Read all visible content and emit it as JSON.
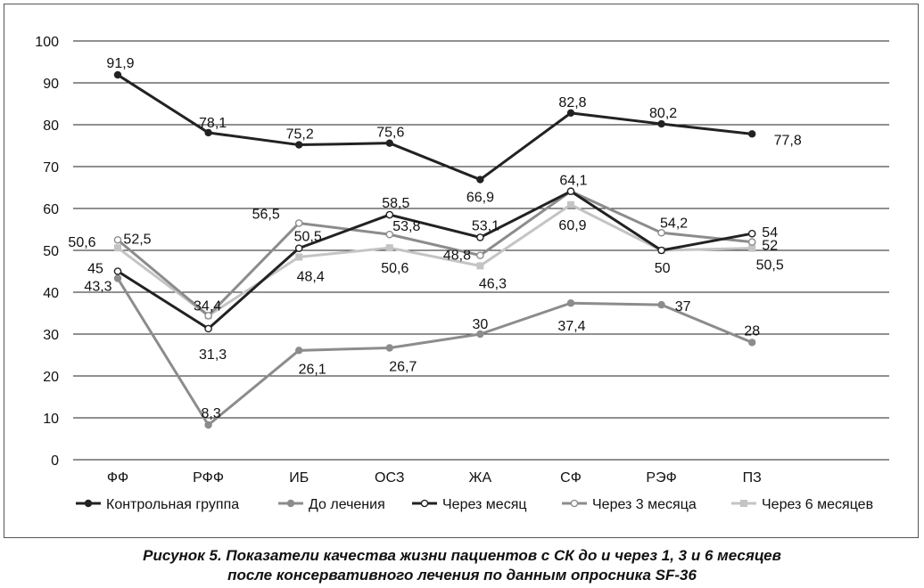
{
  "chart_data": {
    "type": "line",
    "title": "",
    "xlabel": "",
    "ylabel": "",
    "ylim": [
      0,
      100
    ],
    "yticks": [
      0,
      10,
      20,
      30,
      40,
      50,
      60,
      70,
      80,
      90,
      100
    ],
    "grid": true,
    "legend_position": "bottom",
    "categories": [
      "ФФ",
      "РФФ",
      "ИБ",
      "ОСЗ",
      "ЖА",
      "СФ",
      "РЭФ",
      "ПЗ"
    ],
    "series": [
      {
        "name": "Контрольная группа",
        "values": [
          91.9,
          78.1,
          75.2,
          75.6,
          66.9,
          82.8,
          80.2,
          77.8
        ],
        "labels": [
          "91,9",
          "78,1",
          "75,2",
          "75,6",
          "66,9",
          "82,8",
          "80,2",
          "77,8"
        ],
        "color": "#222222",
        "marker": "filled-circle"
      },
      {
        "name": "До лечения",
        "values": [
          43.3,
          8.3,
          26.1,
          26.7,
          30,
          37.4,
          37,
          28
        ],
        "labels": [
          "43,3",
          "8,3",
          "26,1",
          "26,7",
          "30",
          "37,4",
          "37",
          "28"
        ],
        "color": "#8c8c8c",
        "marker": "filled-circle"
      },
      {
        "name": "Через месяц",
        "values": [
          45,
          31.3,
          50.5,
          58.5,
          53.1,
          64.1,
          50,
          54
        ],
        "labels": [
          "45",
          "31,3",
          "50,5",
          "58,5",
          "53,1",
          "64,1",
          "50",
          "54"
        ],
        "color": "#222222",
        "marker": "open-circle"
      },
      {
        "name": "Через 3 месяца",
        "values": [
          52.5,
          34.4,
          56.5,
          53.8,
          48.8,
          64.1,
          54.2,
          52
        ],
        "labels": [
          "52,5",
          "34,4",
          "56,5",
          "53,8",
          "48,8",
          "",
          "54,2",
          "52"
        ],
        "color": "#8c8c8c",
        "marker": "open-circle"
      },
      {
        "name": "Через 6 месяцев",
        "values": [
          50.6,
          34.4,
          48.4,
          50.6,
          46.3,
          60.9,
          50,
          50.5
        ],
        "labels": [
          "50,6",
          "",
          "48,4",
          "50,6",
          "46,3",
          "60,9",
          "",
          "50,5"
        ],
        "color": "#c4c4c4",
        "marker": "square"
      }
    ]
  },
  "caption": {
    "line1": "Рисунок 5. Показатели качества жизни пациентов с СК до и через 1, 3 и 6 месяцев",
    "line2": "после консервативного лечения по данным опросника SF-36"
  }
}
